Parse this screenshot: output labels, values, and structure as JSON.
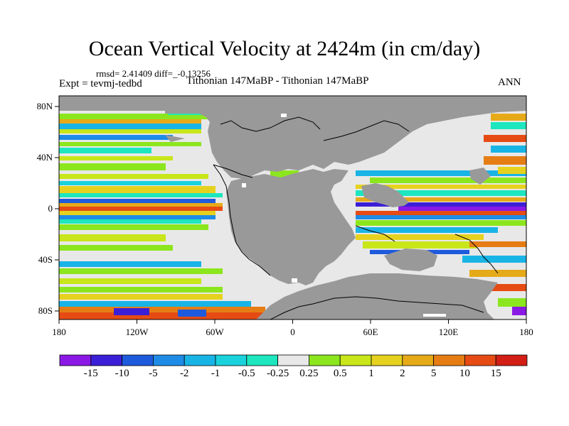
{
  "header": {
    "title": "Ocean Vertical Velocity at 2424m (in cm/day)",
    "stats": "rmsd= 2.41409 diff=_-0.13256",
    "expt": "Expt = tevmj-tedbd",
    "experiments": "Tithonian 147MaBP - Tithonian 147MaBP",
    "season": "ANN"
  },
  "axes": {
    "lat_labels": [
      "80N",
      "40N",
      "0",
      "40S",
      "80S"
    ],
    "lon_labels": [
      "180",
      "120W",
      "60W",
      "0",
      "60E",
      "120E",
      "180"
    ]
  },
  "colorbar": {
    "labels": [
      "-15",
      "-10",
      "-5",
      "-2",
      "-1",
      "-0.5",
      "-0.25",
      "0.25",
      "0.5",
      "1",
      "2",
      "5",
      "10",
      "15"
    ],
    "colors": [
      "#8a19e6",
      "#3b1fd6",
      "#1e5adc",
      "#1e8ce6",
      "#19b4e6",
      "#19d2dc",
      "#1ee6be",
      "#e8e8e8",
      "#8ce61e",
      "#c8e619",
      "#e6d21e",
      "#e6aa19",
      "#e67d14",
      "#e64b14",
      "#d21e14"
    ]
  },
  "map": {
    "land_color": "#999999",
    "background_color": "#e8e8e8"
  }
}
